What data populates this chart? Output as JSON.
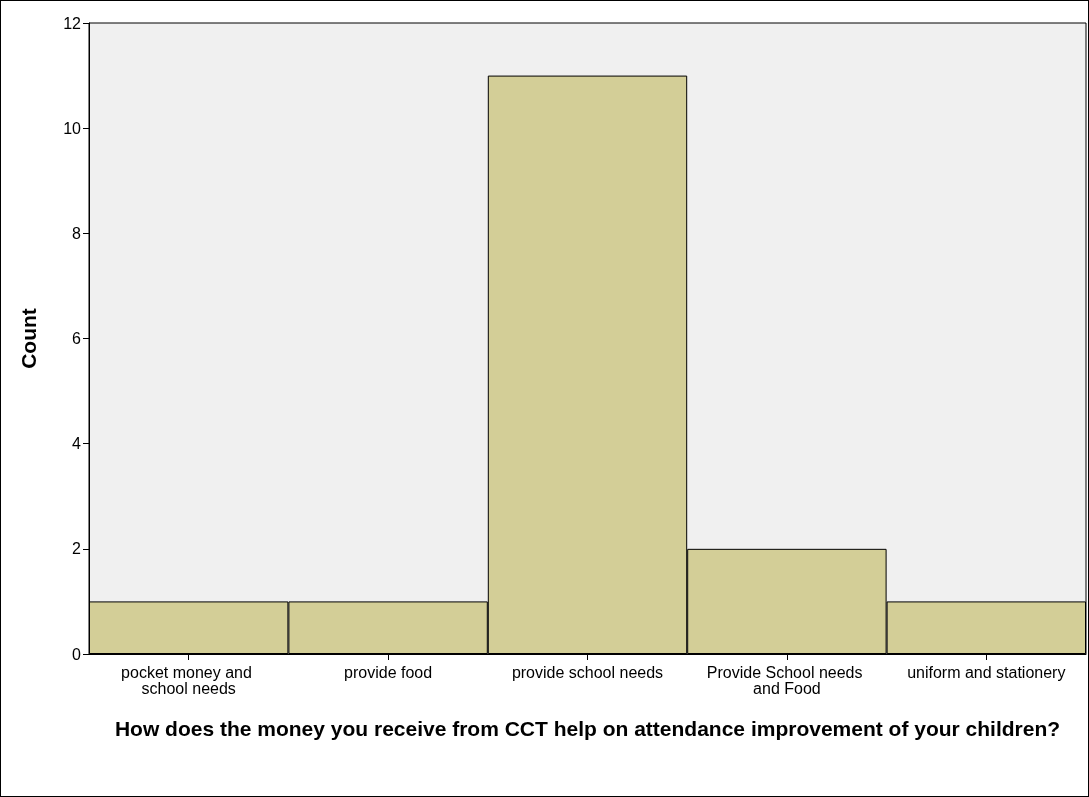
{
  "chart_data": {
    "type": "bar",
    "xlabel": "How does the money you receive from CCT help on attendance improvement of your children?",
    "ylabel": "Count",
    "categories": [
      "pocket money and school needs",
      "provide food",
      "provide school needs",
      "Provide School needs and Food",
      "uniform and stationery"
    ],
    "values": [
      1,
      1,
      11,
      2,
      1
    ],
    "color": "#d3ce97",
    "ylim": [
      0,
      12
    ],
    "yticks": [
      0,
      2,
      4,
      6,
      8,
      10,
      12
    ],
    "grid": false
  }
}
